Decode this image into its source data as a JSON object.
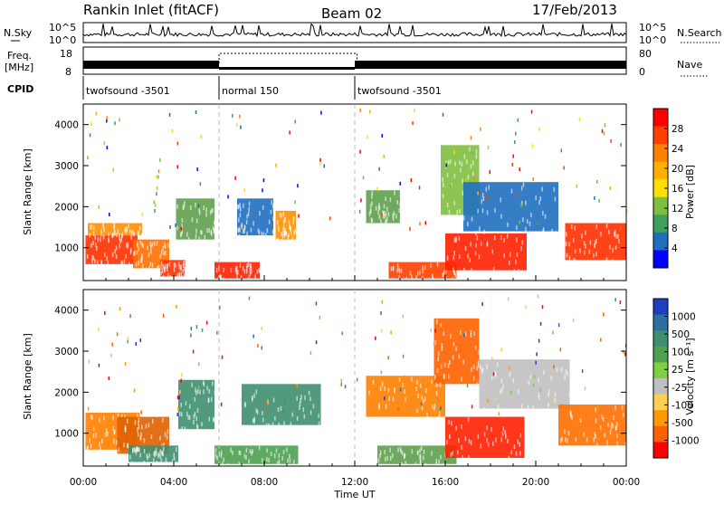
{
  "header": {
    "station": "Rankin Inlet (fitACF)",
    "beam": "Beam 02",
    "date": "17/Feb/2013"
  },
  "noise_panel": {
    "left_label": "N.Sky",
    "right_label": "N.Search",
    "left_ticks": [
      "10^5",
      "10^0"
    ],
    "right_ticks": [
      "10^5",
      "10^0"
    ]
  },
  "freq_panel": {
    "left_label_line1": "Freq.",
    "left_label_line2": "[MHz]",
    "right_label": "Nave",
    "left_ticks": [
      "18",
      "8"
    ],
    "right_ticks": [
      "80",
      "0"
    ]
  },
  "cpid": {
    "label": "CPID",
    "segments": [
      {
        "label": "twofsound -3501",
        "start_h": 0,
        "end_h": 6
      },
      {
        "label": "normal 150",
        "start_h": 6,
        "end_h": 12
      },
      {
        "label": "twofsound -3501",
        "start_h": 12,
        "end_h": 24
      }
    ]
  },
  "chart_data": [
    {
      "type": "heatmap",
      "name": "power",
      "ylabel": "Slant Range [km]",
      "ylim": [
        200,
        4500
      ],
      "yticks": [
        "1000",
        "2000",
        "3000",
        "4000"
      ],
      "xlim": [
        0,
        24
      ],
      "colorbar": {
        "label": "Power [dB]",
        "ticks": [
          "28",
          "24",
          "20",
          "16",
          "12",
          "8",
          "4"
        ],
        "colors": [
          "#ff0000",
          "#ff4000",
          "#ff8000",
          "#ffb000",
          "#ffe000",
          "#7fbf3f",
          "#3f9f5f",
          "#1f6fbf",
          "#0000ff"
        ]
      },
      "regions": [
        {
          "t0": 0.1,
          "t1": 2.4,
          "r0": 600,
          "r1": 1300,
          "color": "#ff3000"
        },
        {
          "t0": 0.2,
          "t1": 2.6,
          "r0": 1300,
          "r1": 1600,
          "color": "#ff9000"
        },
        {
          "t0": 2.2,
          "t1": 3.8,
          "r0": 500,
          "r1": 1200,
          "color": "#ff7000"
        },
        {
          "t0": 3.4,
          "t1": 4.5,
          "r0": 300,
          "r1": 700,
          "color": "#ff3000"
        },
        {
          "t0": 4.1,
          "t1": 5.8,
          "r0": 1200,
          "r1": 2200,
          "color": "#5fa04f"
        },
        {
          "t0": 5.8,
          "t1": 7.8,
          "r0": 250,
          "r1": 650,
          "color": "#ff2000"
        },
        {
          "t0": 6.8,
          "t1": 8.4,
          "r0": 1300,
          "r1": 2200,
          "color": "#1f6fbf"
        },
        {
          "t0": 8.5,
          "t1": 9.4,
          "r0": 1200,
          "r1": 1900,
          "color": "#ff9000"
        },
        {
          "t0": 12.5,
          "t1": 14.0,
          "r0": 1600,
          "r1": 2400,
          "color": "#5fa04f"
        },
        {
          "t0": 13.5,
          "t1": 16.5,
          "r0": 250,
          "r1": 650,
          "color": "#ff4000"
        },
        {
          "t0": 15.8,
          "t1": 17.5,
          "r0": 1800,
          "r1": 3500,
          "color": "#7fbf3f"
        },
        {
          "t0": 16.0,
          "t1": 19.6,
          "r0": 450,
          "r1": 1350,
          "color": "#ff2000"
        },
        {
          "t0": 16.8,
          "t1": 21.0,
          "r0": 1400,
          "r1": 2600,
          "color": "#1f6fbf"
        },
        {
          "t0": 21.3,
          "t1": 24.0,
          "r0": 700,
          "r1": 1600,
          "color": "#ff3000"
        }
      ]
    },
    {
      "type": "heatmap",
      "name": "velocity",
      "ylabel": "Slant Range [km]",
      "ylim": [
        200,
        4500
      ],
      "yticks": [
        "1000",
        "2000",
        "3000",
        "4000"
      ],
      "xlim": [
        0,
        24
      ],
      "xlabel": "Time UT",
      "xticks": [
        "00:00",
        "04:00",
        "08:00",
        "12:00",
        "16:00",
        "20:00",
        "00:00"
      ],
      "colorbar": {
        "label": "Velocity [m s⁻¹]",
        "ticks": [
          "1000",
          "500",
          "100",
          "25",
          "-25",
          "-100",
          "-500",
          "-1000"
        ],
        "colors": [
          "#1f3fbf",
          "#2f6fa0",
          "#3f8f6f",
          "#4fa04f",
          "#7fcf3f",
          "#c0c0c0",
          "#ffd050",
          "#ff9a00",
          "#ff6000",
          "#ff0000"
        ]
      },
      "regions": [
        {
          "t0": 0.1,
          "t1": 2.5,
          "r0": 600,
          "r1": 1500,
          "color": "#ff8000"
        },
        {
          "t0": 1.5,
          "t1": 3.8,
          "r0": 500,
          "r1": 1400,
          "color": "#e06000"
        },
        {
          "t0": 2.0,
          "t1": 4.2,
          "r0": 300,
          "r1": 700,
          "color": "#3f8f6f"
        },
        {
          "t0": 4.2,
          "t1": 5.8,
          "r0": 1100,
          "r1": 2300,
          "color": "#3f8f6f"
        },
        {
          "t0": 5.8,
          "t1": 9.5,
          "r0": 250,
          "r1": 700,
          "color": "#4fa04f"
        },
        {
          "t0": 7.0,
          "t1": 10.5,
          "r0": 1200,
          "r1": 2200,
          "color": "#3f8f6f"
        },
        {
          "t0": 12.5,
          "t1": 16.0,
          "r0": 1400,
          "r1": 2400,
          "color": "#ff8000"
        },
        {
          "t0": 13.0,
          "t1": 16.5,
          "r0": 250,
          "r1": 700,
          "color": "#5fa04f"
        },
        {
          "t0": 16.0,
          "t1": 19.5,
          "r0": 400,
          "r1": 1400,
          "color": "#ff2000"
        },
        {
          "t0": 15.5,
          "t1": 17.5,
          "r0": 2200,
          "r1": 3800,
          "color": "#ff6000"
        },
        {
          "t0": 17.5,
          "t1": 21.5,
          "r0": 1600,
          "r1": 2800,
          "color": "#c0c0c0"
        },
        {
          "t0": 21.0,
          "t1": 24.0,
          "r0": 700,
          "r1": 1700,
          "color": "#ff7000"
        }
      ]
    }
  ]
}
